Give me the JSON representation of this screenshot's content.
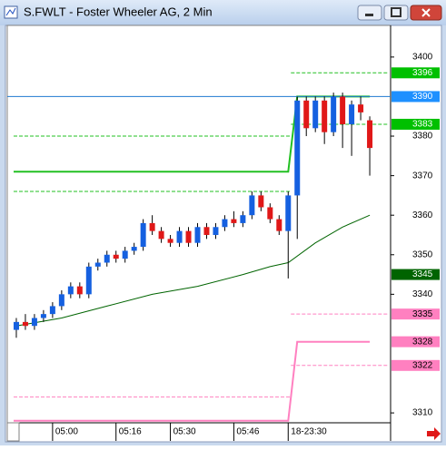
{
  "window": {
    "title": "S.FWLT - Foster Wheeler AG, 2 Min"
  },
  "chart_data": {
    "type": "candlestick",
    "up_color": "#1560e0",
    "down_color": "#e01818",
    "xlim": [
      -1,
      41.3
    ],
    "ylim": [
      3307.5,
      3408
    ],
    "yticks": [
      3310,
      3340,
      3350,
      3360,
      3370,
      3380,
      3400
    ],
    "xticks": [
      {
        "value": 4,
        "label": "05:00"
      },
      {
        "value": 11,
        "label": "05:16"
      },
      {
        "value": 17,
        "label": "05:30"
      },
      {
        "value": 24,
        "label": "05:46"
      },
      {
        "value": 30,
        "label": "18-23:30"
      }
    ],
    "open": [
      3331,
      3333,
      3332,
      3334,
      3335,
      3337,
      3340,
      3342,
      3340,
      3347,
      3348,
      3350,
      3349,
      3351,
      3352,
      3358,
      3356,
      3354,
      3353,
      3356,
      3353,
      3357,
      3355,
      3357,
      3359,
      3358,
      3360,
      3365,
      3362,
      3359,
      3356,
      3365,
      3389,
      3382,
      3389,
      3381,
      3390,
      3383,
      3388,
      3384
    ],
    "high": [
      3334,
      3335,
      3335,
      3336,
      3338,
      3341,
      3343,
      3343,
      3348,
      3349,
      3351,
      3351,
      3352,
      3353,
      3359,
      3360,
      3357,
      3355,
      3357,
      3357,
      3358,
      3358,
      3358,
      3360,
      3361,
      3361,
      3366,
      3366,
      3363,
      3360,
      3366,
      3390,
      3390,
      3390,
      3390,
      3391,
      3391,
      3389,
      3390,
      3385
    ],
    "low": [
      3329,
      3331,
      3331,
      3333,
      3334,
      3336,
      3339,
      3339,
      3339,
      3346,
      3347,
      3348,
      3348,
      3350,
      3351,
      3355,
      3353,
      3352,
      3352,
      3352,
      3352,
      3354,
      3354,
      3356,
      3357,
      3357,
      3359,
      3361,
      3358,
      3355,
      3344,
      3354,
      3380,
      3381,
      3378,
      3380,
      3377,
      3375,
      3384,
      3370
    ],
    "close": [
      3333,
      3332,
      3334,
      3335,
      3337,
      3340,
      3342,
      3340,
      3347,
      3348,
      3350,
      3349,
      3351,
      3352,
      3358,
      3356,
      3354,
      3353,
      3356,
      3353,
      3357,
      3355,
      3357,
      3359,
      3358,
      3360,
      3365,
      3362,
      3359,
      3356,
      3365,
      3389,
      3382,
      3389,
      3381,
      3390,
      3383,
      3388,
      3386,
      3377
    ],
    "lines": [
      {
        "color": "#006400",
        "width": 1,
        "x": [
          0,
          5,
          10,
          15,
          20,
          25,
          28,
          30,
          33,
          36,
          39
        ],
        "values": [
          3332,
          3334,
          3337,
          3340,
          3342,
          3345,
          3347,
          3348,
          3353,
          3357,
          3360
        ]
      },
      {
        "color": "#22c022",
        "width": 2,
        "x": [
          -0.3,
          30,
          31,
          39
        ],
        "values": [
          3371,
          3371,
          3390,
          3390
        ]
      },
      {
        "color": "#ff80c0",
        "width": 2,
        "x": [
          -0.3,
          30,
          31,
          39
        ],
        "values": [
          3308,
          3308,
          3328,
          3328
        ]
      },
      {
        "color": "#1e78d0",
        "width": 1,
        "x": [
          -1,
          41.3
        ],
        "values": [
          3390,
          3390
        ]
      }
    ],
    "levels": [
      {
        "value": 3396,
        "color": "#22c022",
        "x": [
          30.3,
          41
        ]
      },
      {
        "value": 3383,
        "color": "#22c022",
        "x": [
          30.3,
          41
        ]
      },
      {
        "value": 3380,
        "color": "#22c022",
        "x": [
          -0.3,
          30.3
        ]
      },
      {
        "value": 3366,
        "color": "#22c022",
        "x": [
          -0.3,
          30.3
        ]
      },
      {
        "value": 3335,
        "color": "#ff80c0",
        "x": [
          30.3,
          41
        ]
      },
      {
        "value": 3322,
        "color": "#ff80c0",
        "x": [
          30.3,
          41
        ]
      },
      {
        "value": 3314,
        "color": "#ff80c0",
        "x": [
          -0.3,
          30.3
        ]
      }
    ],
    "markers": [
      {
        "value": 3396,
        "color": "#00c000"
      },
      {
        "value": 3390,
        "color": "#1e90ff"
      },
      {
        "value": 3383,
        "color": "#00c000"
      },
      {
        "value": 3345,
        "color": "#006400"
      },
      {
        "value": 3335,
        "color": "#ff80c0"
      },
      {
        "value": 3328,
        "color": "#ff80c0"
      },
      {
        "value": 3322,
        "color": "#ff80c0"
      }
    ]
  }
}
